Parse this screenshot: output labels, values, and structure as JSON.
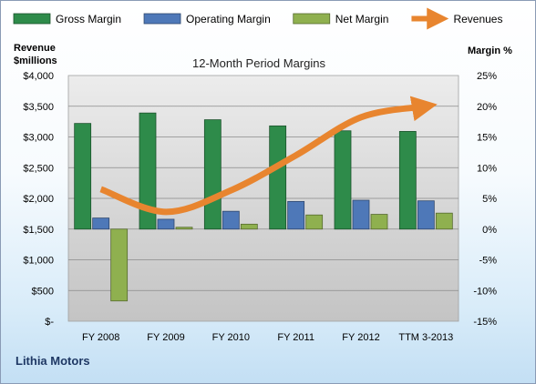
{
  "chart_data": {
    "type": "bar",
    "title": "12-Month Period Margins",
    "company": "Lithia Motors",
    "categories": [
      "FY 2008",
      "FY 2009",
      "FY 2010",
      "FY 2011",
      "FY 2012",
      "TTM 3-2013"
    ],
    "y_left": {
      "label_line1": "Revenue",
      "label_line2": "$millions",
      "min": 0,
      "max": 4000,
      "step": 500,
      "ticks": [
        "$-",
        "$500",
        "$1,000",
        "$1,500",
        "$2,000",
        "$2,500",
        "$3,000",
        "$3,500",
        "$4,000"
      ]
    },
    "y_right": {
      "label": "Margin %",
      "min": -15,
      "max": 25,
      "step": 5,
      "ticks": [
        "-15%",
        "-10%",
        "-5%",
        "0%",
        "5%",
        "10%",
        "15%",
        "20%",
        "25%"
      ]
    },
    "series": [
      {
        "name": "Gross Margin",
        "type": "bar",
        "axis": "right",
        "color": "#2e8b4a",
        "values": [
          17.2,
          18.9,
          17.8,
          16.8,
          16.0,
          15.9
        ]
      },
      {
        "name": "Operating Margin",
        "type": "bar",
        "axis": "right",
        "color": "#4e78b8",
        "values": [
          1.8,
          1.6,
          2.9,
          4.5,
          4.7,
          4.6
        ]
      },
      {
        "name": "Net Margin",
        "type": "bar",
        "axis": "right",
        "color": "#8fb04f",
        "values": [
          -11.7,
          0.3,
          0.8,
          2.3,
          2.4,
          2.6
        ]
      },
      {
        "name": "Revenues",
        "type": "line",
        "axis": "left",
        "color": "#e8852f",
        "values": [
          2150,
          1780,
          2130,
          2700,
          3320,
          3500
        ]
      }
    ],
    "grid": true,
    "legend_position": "top"
  }
}
